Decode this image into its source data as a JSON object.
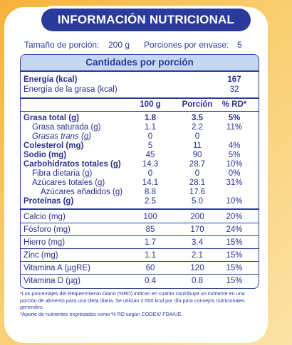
{
  "title": "INFORMACIÓN NUTRICIONAL",
  "serving": {
    "size_label": "Tamaño de porción:",
    "size_value": "200 g",
    "portions_label": "Porciones por envase:",
    "portions_value": "5"
  },
  "header": "Cantidades por porción",
  "energy": [
    {
      "label": "Energía (kcal)",
      "value": "167"
    },
    {
      "label": "Energía de la grasa (kcal)",
      "value": "32"
    }
  ],
  "columns": {
    "c1": "100 g",
    "c2": "Porción",
    "c3": "% RD*"
  },
  "nutrients": [
    {
      "label": "Grasa total (g)",
      "c1": "1.8",
      "c2": "3.5",
      "c3": "5%"
    },
    {
      "label": "Grasa saturada (g)",
      "c1": "1.1",
      "c2": "2.2",
      "c3": "11%"
    },
    {
      "label": "Grasas trans (g)",
      "c1": "0",
      "c2": "0",
      "c3": ""
    },
    {
      "label": "Colesterol (mg)",
      "c1": "5",
      "c2": "11",
      "c3": "4%"
    },
    {
      "label": "Sodio (mg)",
      "c1": "45",
      "c2": "90",
      "c3": "5%"
    },
    {
      "label": "Carbohidratos totales (g)",
      "c1": "14.3",
      "c2": "28.7",
      "c3": "10%"
    },
    {
      "label": "Fibra dietaria (g)",
      "c1": "0",
      "c2": "0",
      "c3": "0%"
    },
    {
      "label": "Azúcares totales (g)",
      "c1": "14.1",
      "c2": "28.1",
      "c3": "31%"
    },
    {
      "label": "Azúcares añadidos (g)",
      "c1": "8.8",
      "c2": "17.6",
      "c3": ""
    },
    {
      "label": "Proteínas (g)",
      "c1": "2.5",
      "c2": "5.0",
      "c3": "10%"
    }
  ],
  "minerals": [
    {
      "label": "Calcio (mg)",
      "c1": "100",
      "c2": "200",
      "c3": "20%"
    },
    {
      "label": "Fósforo (mg)",
      "c1": "85",
      "c2": "170",
      "c3": "24%"
    },
    {
      "label": "Hierro (mg)",
      "c1": "1.7",
      "c2": "3.4",
      "c3": "15%"
    },
    {
      "label": "Zinc (mg)",
      "c1": "1.1",
      "c2": "2.1",
      "c3": "15%"
    },
    {
      "label": "Vitamina A (µgRE)",
      "c1": "60",
      "c2": "120",
      "c3": "15%"
    },
    {
      "label": "Vitamina D (µg)",
      "c1": "0.4",
      "c2": "0.8",
      "c3": "15%"
    }
  ],
  "footnotes": [
    "*Los porcentajes del Requerimiento Diario (%RD) indican en cuanto contribuye un nutriente en una porción de alimento para una dieta diaria. Se utilizan 2 000 kcal por día para consejos nutricionales generales.",
    "*Aporte de nutrientes expresados como % RD según CODEX/ FDA/UE."
  ]
}
